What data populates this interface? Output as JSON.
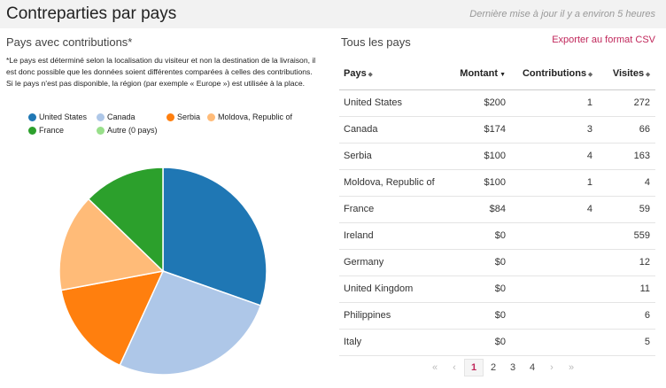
{
  "header": {
    "title": "Contreparties par pays",
    "updated": "Dernière mise à jour il y a environ 5 heures"
  },
  "left": {
    "title": "Pays avec contributions*",
    "note": "*Le pays est déterminé selon la localisation du visiteur et non la destination de la livraison, il est donc possible que les données soient différentes comparées à celles des contributions. Si le pays n'est pas disponible, la région (par exemple « Europe ») est utilisée à la place."
  },
  "legend": [
    {
      "label": "United States",
      "color": "#1f77b4"
    },
    {
      "label": "Canada",
      "color": "#aec7e8"
    },
    {
      "label": "Serbia",
      "color": "#ff7f0e"
    },
    {
      "label": "Moldova, Republic of",
      "color": "#ffbb78"
    },
    {
      "label": "France",
      "color": "#2ca02c"
    },
    {
      "label": "Autre (0 pays)",
      "color": "#98df8a"
    }
  ],
  "chart_data": {
    "type": "pie",
    "categories": [
      "United States",
      "Canada",
      "Serbia",
      "Moldova, Republic of",
      "France",
      "Autre (0 pays)"
    ],
    "values": [
      200,
      174,
      100,
      100,
      84,
      0
    ],
    "colors": [
      "#1f77b4",
      "#aec7e8",
      "#ff7f0e",
      "#ffbb78",
      "#2ca02c",
      "#98df8a"
    ],
    "legend": "top"
  },
  "right": {
    "title": "Tous les pays",
    "export": "Exporter au format CSV"
  },
  "table": {
    "headers": {
      "pays": "Pays",
      "montant": "Montant",
      "contributions": "Contributions",
      "visites": "Visites"
    },
    "sort_icon": "⬥",
    "sort_active_icon": "▼",
    "rows": [
      {
        "pays": "United States",
        "montant": "$200",
        "contributions": "1",
        "visites": "272"
      },
      {
        "pays": "Canada",
        "montant": "$174",
        "contributions": "3",
        "visites": "66"
      },
      {
        "pays": "Serbia",
        "montant": "$100",
        "contributions": "4",
        "visites": "163"
      },
      {
        "pays": "Moldova, Republic of",
        "montant": "$100",
        "contributions": "1",
        "visites": "4"
      },
      {
        "pays": "France",
        "montant": "$84",
        "contributions": "4",
        "visites": "59"
      },
      {
        "pays": "Ireland",
        "montant": "$0",
        "contributions": "",
        "visites": "559"
      },
      {
        "pays": "Germany",
        "montant": "$0",
        "contributions": "",
        "visites": "12"
      },
      {
        "pays": "United Kingdom",
        "montant": "$0",
        "contributions": "",
        "visites": "11"
      },
      {
        "pays": "Philippines",
        "montant": "$0",
        "contributions": "",
        "visites": "6"
      },
      {
        "pays": "Italy",
        "montant": "$0",
        "contributions": "",
        "visites": "5"
      }
    ]
  },
  "pager": {
    "first": "«",
    "prev": "‹",
    "pages": [
      "1",
      "2",
      "3",
      "4"
    ],
    "next": "›",
    "last": "»",
    "current": "1"
  }
}
